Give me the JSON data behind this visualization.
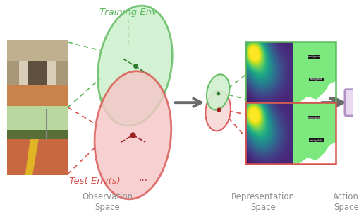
{
  "bg_color": "#ffffff",
  "training_label": "Training Env",
  "test_label": "Test Env(s)",
  "obs_label": "Observation\nSpace",
  "rep_label": "Representation\nSpace",
  "act_label": "Action\nSpace",
  "green_color": "#5CB85C",
  "green_face": "#C8EEC8",
  "red_color": "#D9534F",
  "red_face": "#F5C6C6",
  "purple_face": "#E8D8F0",
  "purple_edge": "#B090C0",
  "gray_arrow": "#6A6A6A",
  "label_gray": "#909090",
  "dots_color": "#B03030"
}
